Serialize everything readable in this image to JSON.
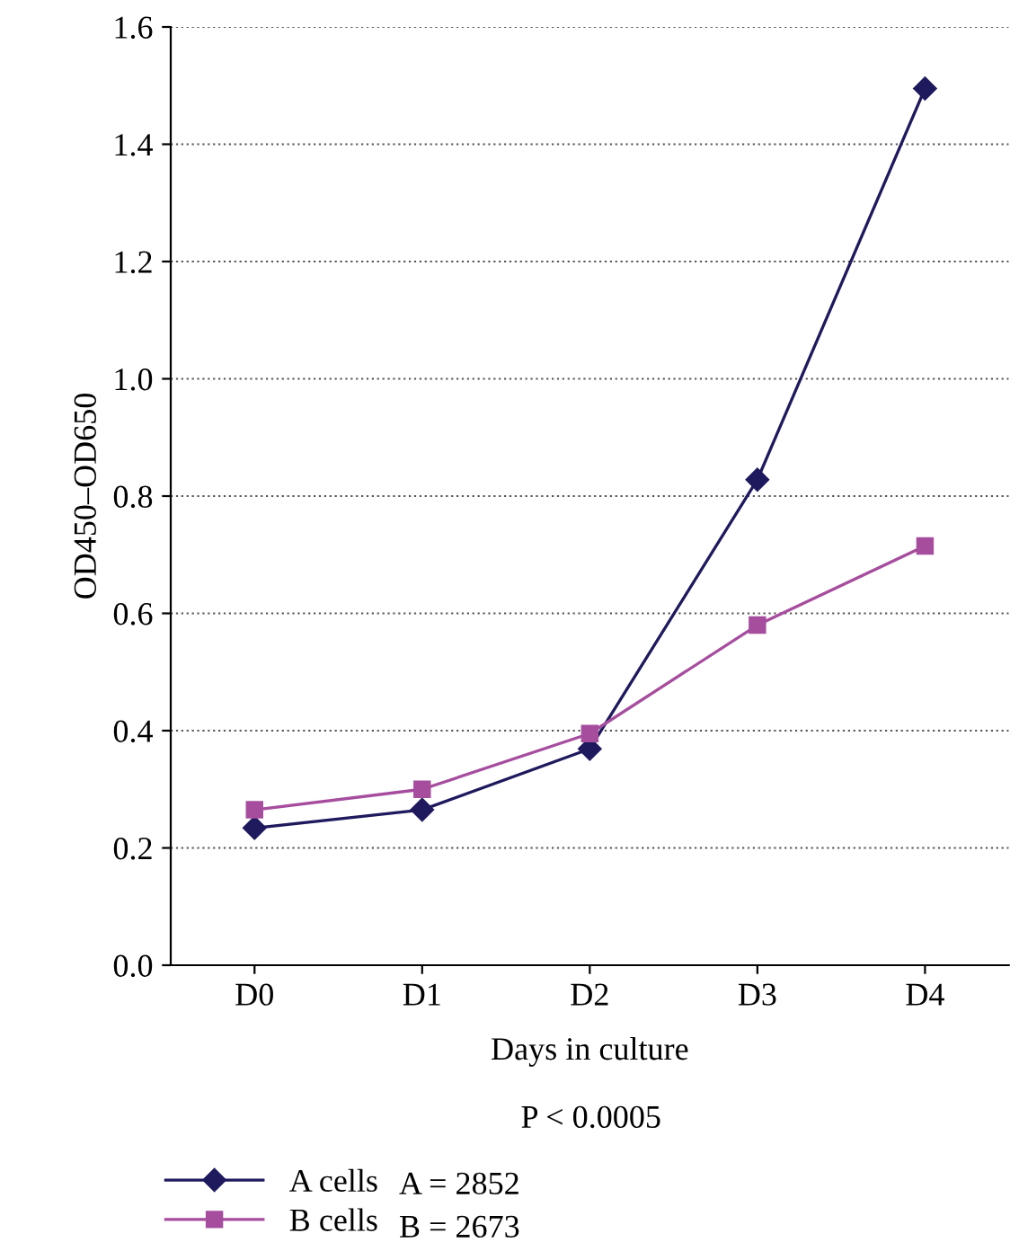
{
  "chart_data": {
    "type": "line",
    "xlabel": "Days in culture",
    "ylabel": "OD450–OD650",
    "categories": [
      "D0",
      "D1",
      "D2",
      "D3",
      "D4"
    ],
    "series": [
      {
        "name": "A cells",
        "color": "#1f1a5e",
        "values": [
          0.234,
          0.265,
          0.369,
          0.828,
          1.495
        ],
        "marker": "diamond"
      },
      {
        "name": "B cells",
        "color": "#a64d9e",
        "values": [
          0.265,
          0.3,
          0.395,
          0.58,
          0.715
        ],
        "marker": "square"
      }
    ],
    "ylim": [
      0,
      1.6
    ],
    "yticks": [
      {
        "value": 0,
        "label": "0.0"
      },
      0.2,
      0.4,
      0.6,
      0.8,
      {
        "value": 1,
        "label": "1.0"
      },
      1.2,
      1.4,
      1.6
    ],
    "grid": "y",
    "legend": "bottom",
    "line_style": "solid",
    "annotations": [
      "P < 0.0005",
      "A = 2852",
      "B = 2673"
    ]
  }
}
